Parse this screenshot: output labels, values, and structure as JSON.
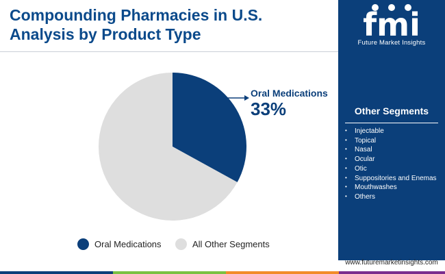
{
  "header": {
    "title_line1": "Compounding Pharmacies in U.S.",
    "title_line2": "Analysis by Product Type"
  },
  "brand": {
    "logo_text": "fmi",
    "logo_subtitle": "Future Market Insights",
    "url": "www.futuremarketinsights.com"
  },
  "sidebar": {
    "title": "Other Segments",
    "items": [
      "Injectable",
      "Topical",
      "Nasal",
      "Ocular",
      "Otic",
      "Suppositories and Enemas",
      "Mouthwashes",
      "Others"
    ]
  },
  "colors": {
    "primary": "#0b3f7a",
    "other": "#dedede",
    "bottom_bar": [
      "#0b3f7a",
      "#7ac143",
      "#f28c28",
      "#7b2d8e"
    ]
  },
  "chart_data": {
    "type": "pie",
    "slices": [
      {
        "label": "Oral Medications",
        "value": 33,
        "color": "#0b3f7a"
      },
      {
        "label": "All Other Segments",
        "value": 67,
        "color": "#dedede"
      }
    ],
    "callout": {
      "label": "Oral Medications",
      "value": "33%"
    },
    "legend": {
      "position": "bottom",
      "entries": [
        "Oral Medications",
        "All Other Segments"
      ]
    }
  }
}
